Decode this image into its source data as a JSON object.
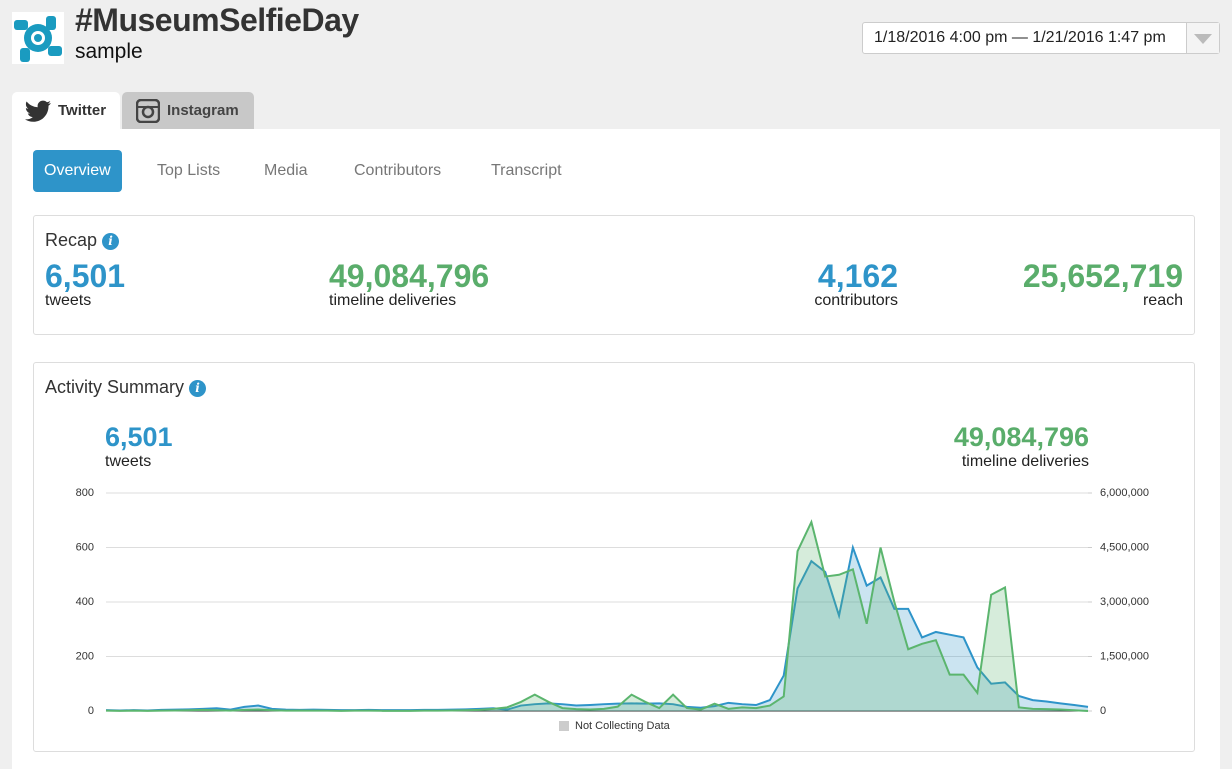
{
  "header": {
    "title": "#MuseumSelfieDay",
    "subtitle": "sample",
    "date_range": "1/18/2016 4:00 pm — 1/21/2016 1:47 pm"
  },
  "platform_tabs": [
    "Twitter",
    "Instagram"
  ],
  "nav_tabs": [
    "Overview",
    "Top Lists",
    "Media",
    "Contributors",
    "Transcript"
  ],
  "recap": {
    "title": "Recap",
    "stats": [
      {
        "value": "6,501",
        "label": "tweets"
      },
      {
        "value": "49,084,796",
        "label": "timeline deliveries"
      },
      {
        "value": "4,162",
        "label": "contributors"
      },
      {
        "value": "25,652,719",
        "label": "reach"
      }
    ]
  },
  "activity": {
    "title": "Activity Summary",
    "stats": [
      {
        "value": "6,501",
        "label": "tweets"
      },
      {
        "value": "49,084,796",
        "label": "timeline deliveries"
      }
    ]
  },
  "chart_data": {
    "type": "area",
    "annotation": "Not Collecting Data",
    "grid": true,
    "ylim": [
      0,
      800
    ],
    "yticks": [
      0,
      200,
      400,
      600,
      800
    ],
    "y2lim": [
      0,
      6000000
    ],
    "y2ticks": [
      0,
      {
        "value": 1500000,
        "label": "1,500,000"
      },
      {
        "value": 3000000,
        "label": "3,000,000"
      },
      {
        "value": 4500000,
        "label": "4,500,000"
      },
      {
        "value": 6000000,
        "label": "6,000,000"
      }
    ],
    "series": [
      {
        "name": "tweets",
        "color": "#2e94c9",
        "values": [
          3,
          2,
          3,
          2,
          4,
          5,
          6,
          8,
          10,
          5,
          15,
          20,
          8,
          5,
          4,
          5,
          4,
          3,
          3,
          4,
          3,
          3,
          3,
          4,
          4,
          5,
          6,
          8,
          10,
          5,
          20,
          25,
          28,
          25,
          20,
          22,
          25,
          27,
          28,
          27,
          28,
          25,
          15,
          12,
          18,
          30,
          25,
          22,
          40,
          130,
          450,
          550,
          510,
          350,
          600,
          460,
          490,
          375,
          375,
          270,
          290,
          280,
          270,
          160,
          100,
          105,
          55,
          40,
          35,
          28,
          22,
          15
        ]
      },
      {
        "name": "timeline deliveries",
        "color": "#5bb56e",
        "axis": "y2",
        "values": [
          10000,
          5000,
          10000,
          5000,
          10000,
          15000,
          20000,
          30000,
          20000,
          10000,
          30000,
          40000,
          20000,
          10000,
          15000,
          10000,
          10000,
          5000,
          10000,
          10000,
          5000,
          5000,
          5000,
          10000,
          10000,
          15000,
          20000,
          30000,
          60000,
          100000,
          250000,
          450000,
          250000,
          80000,
          50000,
          40000,
          60000,
          120000,
          450000,
          250000,
          80000,
          450000,
          80000,
          40000,
          200000,
          60000,
          100000,
          80000,
          150000,
          400000,
          4400000,
          5200000,
          3700000,
          3750000,
          3900000,
          2400000,
          4500000,
          3000000,
          1700000,
          1850000,
          1950000,
          1000000,
          1000000,
          500000,
          3200000,
          3400000,
          100000,
          60000,
          50000,
          40000,
          20000,
          0
        ]
      }
    ]
  }
}
